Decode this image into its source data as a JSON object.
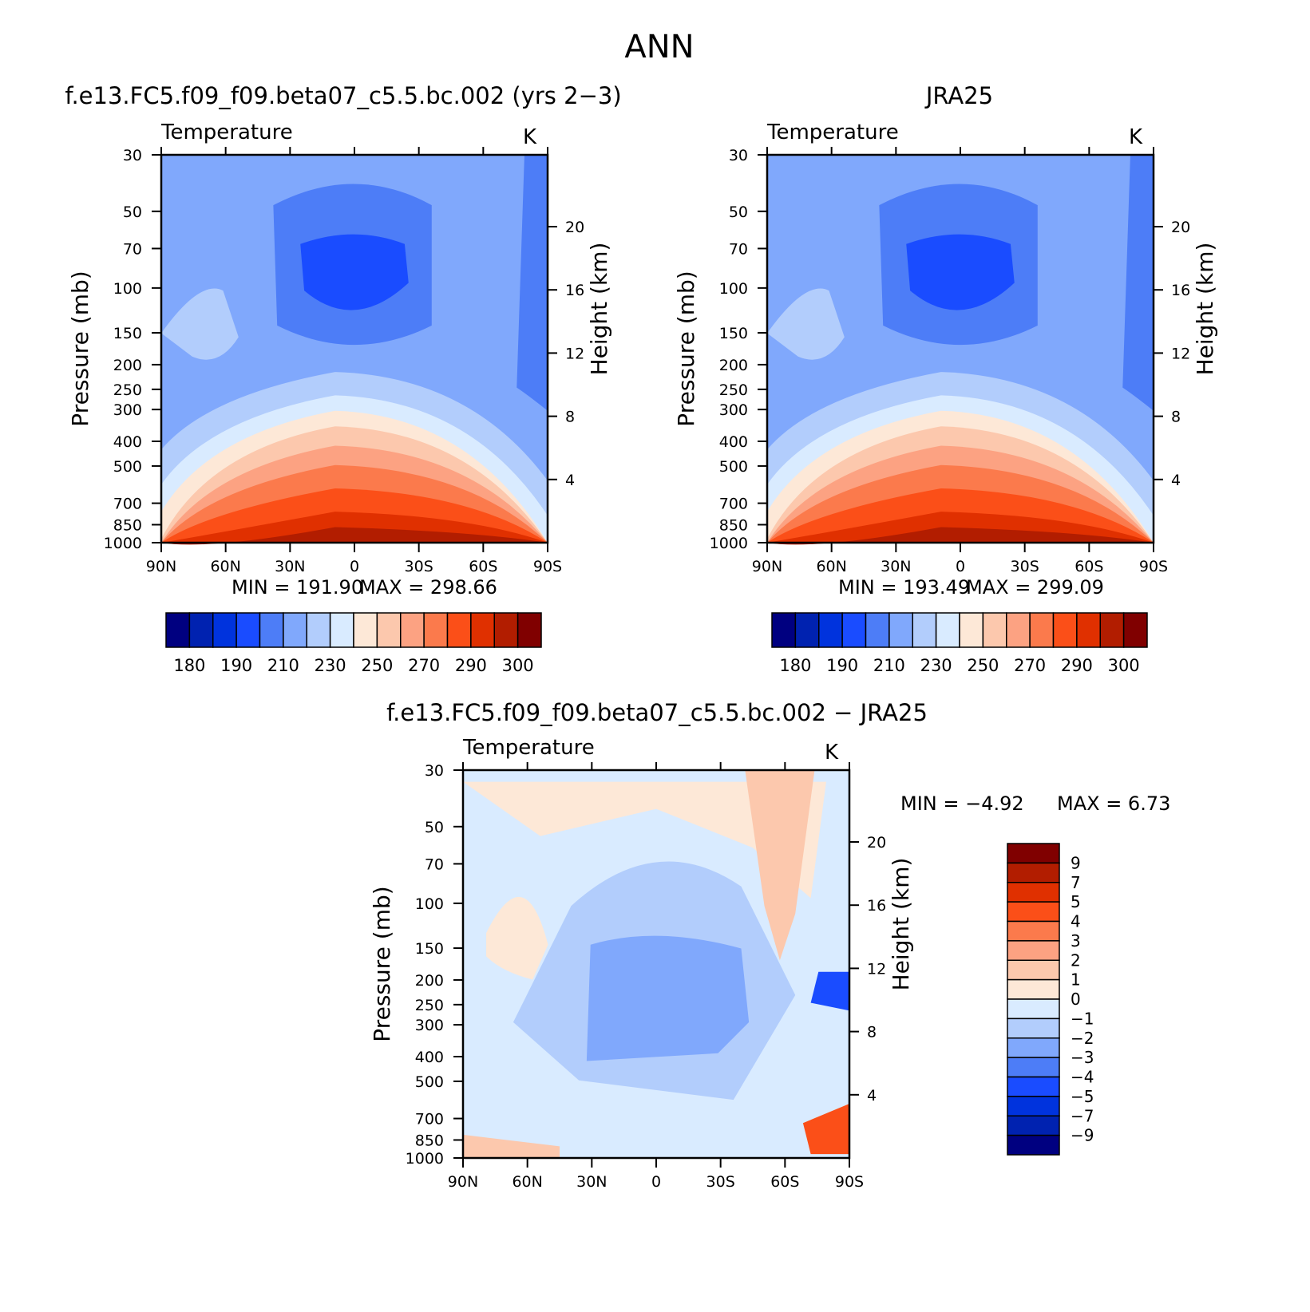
{
  "page_title": "ANN",
  "chart_data": [
    {
      "type": "heatmap",
      "panel_title": "f.e13.FC5.f09_f09.beta07_c5.5.bc.002 (yrs 2−3)",
      "variable": "Temperature",
      "units": "K",
      "xlabel": "",
      "ylabel": "Pressure (mb)",
      "ylabel_right": "Height (km)",
      "x_ticks": [
        "90N",
        "60N",
        "30N",
        "0",
        "30S",
        "60S",
        "90S"
      ],
      "y_ticks": [
        30,
        50,
        70,
        100,
        150,
        200,
        250,
        300,
        400,
        500,
        700,
        850,
        1000
      ],
      "y_ticks_right": [
        4,
        8,
        12,
        16,
        20
      ],
      "scale": "log-pressure",
      "min_text": "MIN =  191.90",
      "max_text": "MAX =  298.66",
      "min": 191.9,
      "max": 298.66,
      "colorbar_labels": [
        "180",
        "190",
        "210",
        "230",
        "250",
        "270",
        "290",
        "300"
      ],
      "colorbar_colors": [
        "#000080",
        "#0022b0",
        "#0033dd",
        "#1a4cff",
        "#4d7df7",
        "#80a8fc",
        "#b2cdfc",
        "#d9ebff",
        "#fde8d7",
        "#fcc8ad",
        "#fca282",
        "#fb7a4c",
        "#fb4f18",
        "#e03000",
        "#b21d00",
        "#800000"
      ]
    },
    {
      "type": "heatmap",
      "panel_title": "JRA25",
      "variable": "Temperature",
      "units": "K",
      "xlabel": "",
      "ylabel": "Pressure (mb)",
      "ylabel_right": "Height (km)",
      "x_ticks": [
        "90N",
        "60N",
        "30N",
        "0",
        "30S",
        "60S",
        "90S"
      ],
      "y_ticks": [
        30,
        50,
        70,
        100,
        150,
        200,
        250,
        300,
        400,
        500,
        700,
        850,
        1000
      ],
      "y_ticks_right": [
        4,
        8,
        12,
        16,
        20
      ],
      "scale": "log-pressure",
      "min_text": "MIN =  193.49",
      "max_text": "MAX =  299.09",
      "min": 193.49,
      "max": 299.09,
      "colorbar_labels": [
        "180",
        "190",
        "210",
        "230",
        "250",
        "270",
        "290",
        "300"
      ],
      "colorbar_colors": [
        "#000080",
        "#0022b0",
        "#0033dd",
        "#1a4cff",
        "#4d7df7",
        "#80a8fc",
        "#b2cdfc",
        "#d9ebff",
        "#fde8d7",
        "#fcc8ad",
        "#fca282",
        "#fb7a4c",
        "#fb4f18",
        "#e03000",
        "#b21d00",
        "#800000"
      ]
    },
    {
      "type": "heatmap",
      "panel_title": "f.e13.FC5.f09_f09.beta07_c5.5.bc.002 − JRA25",
      "variable": "Temperature",
      "units": "K",
      "xlabel": "",
      "ylabel": "Pressure (mb)",
      "ylabel_right": "Height (km)",
      "x_ticks": [
        "90N",
        "60N",
        "30N",
        "0",
        "30S",
        "60S",
        "90S"
      ],
      "y_ticks": [
        30,
        50,
        70,
        100,
        150,
        200,
        250,
        300,
        400,
        500,
        700,
        850,
        1000
      ],
      "y_ticks_right": [
        4,
        8,
        12,
        16,
        20
      ],
      "scale": "log-pressure",
      "min_text": "MIN =   −4.92",
      "max_text": "MAX =    6.73",
      "min": -4.92,
      "max": 6.73,
      "colorbar_labels": [
        "9",
        "7",
        "5",
        "4",
        "3",
        "2",
        "1",
        "0",
        "−1",
        "−2",
        "−3",
        "−4",
        "−5",
        "−7",
        "−9"
      ],
      "colorbar_colors": [
        "#800000",
        "#b21d00",
        "#e03000",
        "#fb4f18",
        "#fb7a4c",
        "#fca282",
        "#fcc8ad",
        "#fde8d7",
        "#d9ebff",
        "#b2cdfc",
        "#80a8fc",
        "#4d7df7",
        "#1a4cff",
        "#0033dd",
        "#0022b0",
        "#000080"
      ]
    }
  ]
}
